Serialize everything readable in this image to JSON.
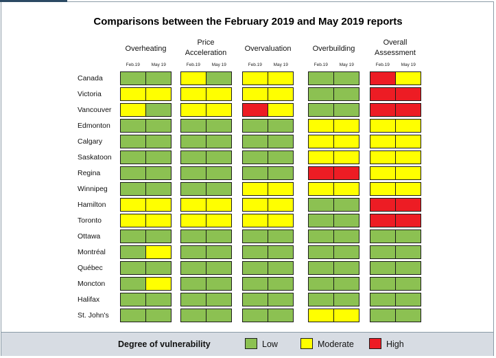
{
  "colors": {
    "low": "#8cc152",
    "moderate": "#ffff00",
    "high": "#ed1c24"
  },
  "chart_data": {
    "type": "table",
    "title": "Comparisons between the February 2019 and May 2019 reports",
    "groups": [
      {
        "key": "overheating",
        "label": "Overheating",
        "periods": [
          "Feb.19",
          "May 19"
        ]
      },
      {
        "key": "price_acceleration",
        "label": "Price Acceleration",
        "periods": [
          "Feb.19",
          "May 19"
        ]
      },
      {
        "key": "overvaluation",
        "label": "Overvaluation",
        "periods": [
          "Feb.19",
          "May 19"
        ]
      },
      {
        "key": "overbuilding",
        "label": "Overbuilding",
        "periods": [
          "Feb.19",
          "May 19"
        ]
      },
      {
        "key": "overall_assessment",
        "label": "Overall Assessment",
        "periods": [
          "Feb.19",
          "May 19"
        ]
      }
    ],
    "rows": [
      {
        "city": "Canada",
        "values": [
          [
            "low",
            "low"
          ],
          [
            "moderate",
            "low"
          ],
          [
            "moderate",
            "moderate"
          ],
          [
            "low",
            "low"
          ],
          [
            "high",
            "moderate"
          ]
        ]
      },
      {
        "city": "Victoria",
        "values": [
          [
            "moderate",
            "moderate"
          ],
          [
            "moderate",
            "moderate"
          ],
          [
            "moderate",
            "moderate"
          ],
          [
            "low",
            "low"
          ],
          [
            "high",
            "high"
          ]
        ]
      },
      {
        "city": "Vancouver",
        "values": [
          [
            "moderate",
            "low"
          ],
          [
            "moderate",
            "moderate"
          ],
          [
            "high",
            "moderate"
          ],
          [
            "low",
            "low"
          ],
          [
            "high",
            "high"
          ]
        ]
      },
      {
        "city": "Edmonton",
        "values": [
          [
            "low",
            "low"
          ],
          [
            "low",
            "low"
          ],
          [
            "low",
            "low"
          ],
          [
            "moderate",
            "moderate"
          ],
          [
            "moderate",
            "moderate"
          ]
        ]
      },
      {
        "city": "Calgary",
        "values": [
          [
            "low",
            "low"
          ],
          [
            "low",
            "low"
          ],
          [
            "low",
            "low"
          ],
          [
            "moderate",
            "moderate"
          ],
          [
            "moderate",
            "moderate"
          ]
        ]
      },
      {
        "city": "Saskatoon",
        "values": [
          [
            "low",
            "low"
          ],
          [
            "low",
            "low"
          ],
          [
            "low",
            "low"
          ],
          [
            "moderate",
            "moderate"
          ],
          [
            "moderate",
            "moderate"
          ]
        ]
      },
      {
        "city": "Regina",
        "values": [
          [
            "low",
            "low"
          ],
          [
            "low",
            "low"
          ],
          [
            "low",
            "low"
          ],
          [
            "high",
            "high"
          ],
          [
            "moderate",
            "moderate"
          ]
        ]
      },
      {
        "city": "Winnipeg",
        "values": [
          [
            "low",
            "low"
          ],
          [
            "low",
            "low"
          ],
          [
            "moderate",
            "moderate"
          ],
          [
            "moderate",
            "moderate"
          ],
          [
            "moderate",
            "moderate"
          ]
        ]
      },
      {
        "city": "Hamilton",
        "values": [
          [
            "moderate",
            "moderate"
          ],
          [
            "moderate",
            "moderate"
          ],
          [
            "moderate",
            "moderate"
          ],
          [
            "low",
            "low"
          ],
          [
            "high",
            "high"
          ]
        ]
      },
      {
        "city": "Toronto",
        "values": [
          [
            "moderate",
            "moderate"
          ],
          [
            "moderate",
            "moderate"
          ],
          [
            "moderate",
            "moderate"
          ],
          [
            "low",
            "low"
          ],
          [
            "high",
            "high"
          ]
        ]
      },
      {
        "city": "Ottawa",
        "values": [
          [
            "low",
            "low"
          ],
          [
            "low",
            "low"
          ],
          [
            "low",
            "low"
          ],
          [
            "low",
            "low"
          ],
          [
            "low",
            "low"
          ]
        ]
      },
      {
        "city": "Montréal",
        "values": [
          [
            "low",
            "moderate"
          ],
          [
            "low",
            "low"
          ],
          [
            "low",
            "low"
          ],
          [
            "low",
            "low"
          ],
          [
            "low",
            "low"
          ]
        ]
      },
      {
        "city": "Québec",
        "values": [
          [
            "low",
            "low"
          ],
          [
            "low",
            "low"
          ],
          [
            "low",
            "low"
          ],
          [
            "low",
            "low"
          ],
          [
            "low",
            "low"
          ]
        ]
      },
      {
        "city": "Moncton",
        "values": [
          [
            "low",
            "moderate"
          ],
          [
            "low",
            "low"
          ],
          [
            "low",
            "low"
          ],
          [
            "low",
            "low"
          ],
          [
            "low",
            "low"
          ]
        ]
      },
      {
        "city": "Halifax",
        "values": [
          [
            "low",
            "low"
          ],
          [
            "low",
            "low"
          ],
          [
            "low",
            "low"
          ],
          [
            "low",
            "low"
          ],
          [
            "low",
            "low"
          ]
        ]
      },
      {
        "city": "St. John's",
        "values": [
          [
            "low",
            "low"
          ],
          [
            "low",
            "low"
          ],
          [
            "low",
            "low"
          ],
          [
            "moderate",
            "moderate"
          ],
          [
            "low",
            "low"
          ]
        ]
      }
    ],
    "legend": {
      "title": "Degree of vulnerability",
      "items": [
        {
          "key": "low",
          "label": "Low"
        },
        {
          "key": "moderate",
          "label": "Moderate"
        },
        {
          "key": "high",
          "label": "High"
        }
      ]
    }
  }
}
